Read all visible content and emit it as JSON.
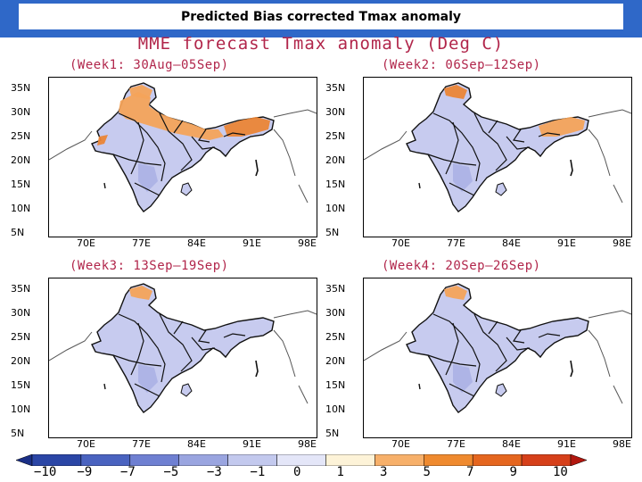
{
  "slide_title": "Predicted Bias corrected Tmax anomaly",
  "map_title": "MME  forecast  Tmax  anomaly  (Deg  C)",
  "panels": [
    {
      "label": "(Week1:  30Aug—05Sep)",
      "week": 1,
      "warm_level": "strong"
    },
    {
      "label": "(Week2:  06Sep—12Sep)",
      "week": 2,
      "warm_level": "moderate"
    },
    {
      "label": "(Week3:  13Sep—19Sep)",
      "week": 3,
      "warm_level": "weak"
    },
    {
      "label": "(Week4:  20Sep—26Sep)",
      "week": 4,
      "warm_level": "weak"
    }
  ],
  "lat_ticks": [
    "35N",
    "30N",
    "25N",
    "20N",
    "15N",
    "10N",
    "5N"
  ],
  "lon_ticks": [
    "70E",
    "77E",
    "84E",
    "91E",
    "98E"
  ],
  "colorbar": {
    "ticks": [
      "−10",
      "−9",
      "−7",
      "−5",
      "−3",
      "−1",
      "0",
      "1",
      "3",
      "5",
      "7",
      "9",
      "10"
    ],
    "colors": [
      "#1a2f86",
      "#2b46a6",
      "#4a63c0",
      "#6f80d2",
      "#9aa5e0",
      "#c3c9ee",
      "#e4e6f8",
      "#fdf3d8",
      "#f7b06a",
      "#ef8a2f",
      "#e5661f",
      "#d6401a",
      "#b2170f"
    ]
  },
  "colors": {
    "banner": "#2f68c8",
    "title_text": "#b1264b",
    "cool": "#c7cbef",
    "cool_dark": "#aeb4e6",
    "warm": "#f4a35a",
    "warm_dark": "#eb8536"
  }
}
